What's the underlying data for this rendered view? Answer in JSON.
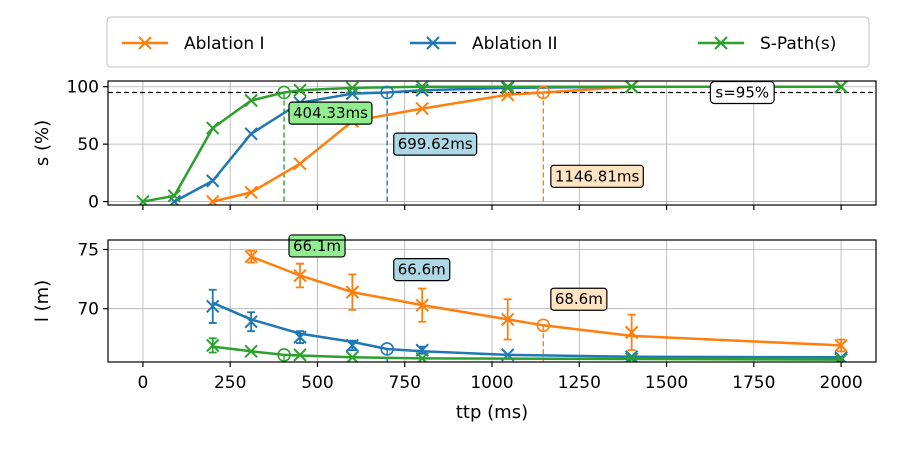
{
  "chart_data": {
    "type": "line",
    "legend": {
      "placement": "top",
      "entries": [
        "Ablation I",
        "Ablation II",
        "S-Path(s)"
      ]
    },
    "colors": {
      "Ablation I": "#ff7f0e",
      "Ablation II": "#1f77b4",
      "S-Path(s)": "#2ca02c"
    },
    "x": {
      "label": "ttp (ms)",
      "range": [
        -100,
        2100
      ],
      "ticks": [
        0,
        250,
        500,
        750,
        1000,
        1250,
        1500,
        1750,
        2000
      ],
      "tick_labels": [
        "0",
        "250",
        "500",
        "750",
        "1000",
        "1250",
        "1500",
        "1750",
        "2000"
      ]
    },
    "panels": [
      {
        "id": "success",
        "ylabel": "s (%)",
        "ylim": [
          -3,
          105
        ],
        "yticks": [
          0,
          50,
          100
        ],
        "ytick_labels": [
          "0",
          "50",
          "100"
        ],
        "grid": true,
        "threshold": {
          "value": 95,
          "label": "s=95%"
        },
        "series": [
          {
            "name": "Ablation I",
            "color": "#ff7f0e",
            "points": [
              [
                200,
                0
              ],
              [
                310,
                8
              ],
              [
                450,
                33
              ],
              [
                600,
                70
              ],
              [
                800,
                81
              ],
              [
                1045,
                93
              ],
              [
                1146.81,
                95
              ],
              [
                1400,
                100
              ],
              [
                2000,
                100
              ]
            ],
            "markers": [
              200,
              310,
              450,
              600,
              800,
              1045,
              1400,
              2000
            ]
          },
          {
            "name": "Ablation II",
            "color": "#1f77b4",
            "points": [
              [
                90,
                0
              ],
              [
                200,
                18
              ],
              [
                310,
                59
              ],
              [
                450,
                86
              ],
              [
                600,
                94
              ],
              [
                699.62,
                95
              ],
              [
                800,
                97
              ],
              [
                1045,
                99
              ],
              [
                1400,
                100
              ],
              [
                2000,
                100
              ]
            ],
            "markers": [
              90,
              200,
              310,
              450,
              600,
              800,
              1045,
              1400,
              2000
            ]
          },
          {
            "name": "S-Path(s)",
            "color": "#2ca02c",
            "points": [
              [
                0,
                0
              ],
              [
                90,
                5
              ],
              [
                200,
                64
              ],
              [
                310,
                88
              ],
              [
                404.33,
                95
              ],
              [
                450,
                97
              ],
              [
                600,
                99
              ],
              [
                800,
                100
              ],
              [
                1045,
                100
              ],
              [
                1400,
                100
              ],
              [
                2000,
                100
              ]
            ],
            "markers": [
              0,
              90,
              200,
              310,
              450,
              600,
              800,
              1045,
              1400,
              2000
            ]
          }
        ],
        "crossings": [
          {
            "series": "S-Path(s)",
            "x": 404.33,
            "label": "404.33ms",
            "color": "#2ca02c",
            "box": "#90ee90",
            "label_x": 430,
            "label_y": 77
          },
          {
            "series": "Ablation II",
            "x": 699.62,
            "label": "699.62ms",
            "color": "#1f77b4",
            "box": "#add8e6",
            "label_x": 730,
            "label_y": 50
          },
          {
            "series": "Ablation I",
            "x": 1146.81,
            "label": "1146.81ms",
            "color": "#ff7f0e",
            "box": "#ffe4c4",
            "label_x": 1180,
            "label_y": 22
          }
        ]
      },
      {
        "id": "length",
        "ylabel": "l (m)",
        "ylim": [
          65.5,
          75.8
        ],
        "yticks": [
          70,
          75
        ],
        "ytick_labels": [
          "70",
          "75"
        ],
        "grid": true,
        "series": [
          {
            "name": "Ablation I",
            "color": "#ff7f0e",
            "curve": [
              [
                310,
                74.4
              ],
              [
                450,
                72.8
              ],
              [
                600,
                71.4
              ],
              [
                800,
                70.3
              ],
              [
                1045,
                69.1
              ],
              [
                1146.81,
                68.6
              ],
              [
                1400,
                67.7
              ],
              [
                2000,
                66.9
              ]
            ],
            "markers": [
              [
                310,
                74.4,
                0.5
              ],
              [
                450,
                72.8,
                1.0
              ],
              [
                600,
                71.4,
                1.5
              ],
              [
                800,
                70.3,
                1.4
              ],
              [
                1045,
                69.1,
                1.7
              ],
              [
                1400,
                68.0,
                1.5
              ],
              [
                2000,
                66.9,
                0.5
              ]
            ]
          },
          {
            "name": "Ablation II",
            "color": "#1f77b4",
            "curve": [
              [
                200,
                70.5
              ],
              [
                310,
                69.1
              ],
              [
                450,
                67.9
              ],
              [
                600,
                67.2
              ],
              [
                699.62,
                66.6
              ],
              [
                800,
                66.4
              ],
              [
                1045,
                66.1
              ],
              [
                1400,
                65.95
              ],
              [
                2000,
                65.9
              ]
            ],
            "markers": [
              [
                200,
                70.2,
                1.4
              ],
              [
                310,
                68.9,
                0.8
              ],
              [
                450,
                67.6,
                0.5
              ],
              [
                600,
                66.9,
                0.4
              ],
              [
                800,
                66.5,
                0.3
              ],
              [
                1045,
                66.1,
                0.2
              ],
              [
                1400,
                65.95,
                0.2
              ],
              [
                2000,
                65.85,
                0.2
              ]
            ]
          },
          {
            "name": "S-Path(s)",
            "color": "#2ca02c",
            "curve": [
              [
                200,
                66.8
              ],
              [
                310,
                66.4
              ],
              [
                404.33,
                66.1
              ],
              [
                450,
                66.05
              ],
              [
                600,
                65.9
              ],
              [
                800,
                65.8
              ],
              [
                1400,
                65.75
              ],
              [
                2000,
                65.7
              ]
            ],
            "markers": [
              [
                200,
                66.9,
                0.6
              ],
              [
                310,
                66.4,
                0.2
              ],
              [
                450,
                66.1,
                0.2
              ],
              [
                600,
                65.9,
                0.2
              ],
              [
                800,
                65.8,
                0.2
              ],
              [
                1400,
                65.75,
                0.2
              ],
              [
                2000,
                65.7,
                0.2
              ]
            ]
          }
        ],
        "crossings": [
          {
            "series": "S-Path(s)",
            "x": 404.33,
            "y": 66.1,
            "label": "66.1m",
            "color": "#2ca02c",
            "box": "#90ee90",
            "label_x": 430,
            "label_y": 75.3
          },
          {
            "series": "Ablation II",
            "x": 699.62,
            "y": 66.6,
            "label": "66.6m",
            "color": "#1f77b4",
            "box": "#add8e6",
            "label_x": 730,
            "label_y": 73.3
          },
          {
            "series": "Ablation I",
            "x": 1146.81,
            "y": 68.6,
            "label": "68.6m",
            "color": "#ff7f0e",
            "box": "#ffe4c4",
            "label_x": 1180,
            "label_y": 70.8
          }
        ]
      }
    ]
  }
}
